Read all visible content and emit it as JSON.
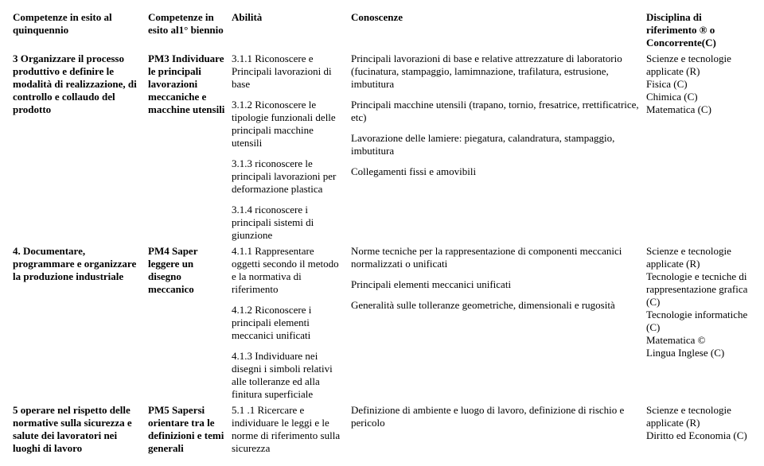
{
  "headers": {
    "h1": "Competenze in esito al quinquennio",
    "h2": "Competenze in esito al1° biennio",
    "h3": "Abilità",
    "h4": "Conoscenze",
    "h5": "Disciplina di riferimento ® o Concorrente(C)"
  },
  "rows": [
    {
      "c1": "3 Organizzare il processo produttivo e definire le modalità di realizzazione, di controllo e collaudo del prodotto",
      "c2_lead": "PM3",
      "c2_rest": " Individuare le principali lavorazioni meccaniche e macchine utensili",
      "abilita": [
        "3.1.1 Riconoscere e Principali lavorazioni di base",
        "3.1.2 Riconoscere le tipologie funzionali delle principali macchine utensili",
        "3.1.3 riconoscere le principali lavorazioni per deformazione plastica",
        "3.1.4 riconoscere i principali sistemi di giunzione"
      ],
      "conoscenze": [
        "Principali lavorazioni di base e relative attrezzature di laboratorio (fucinatura, stampaggio, lamimnazione, trafilatura, estrusione, imbutitura",
        "Principali macchine utensili (trapano, tornio, fresatrice, rrettificatrice, etc)",
        "Lavorazione delle lamiere: piegatura, calandratura, stampaggio, imbutitura",
        "Collegamenti fissi e amovibili"
      ],
      "disc": [
        "Scienze e tecnologie applicate (R)",
        "Fisica (C)",
        "Chimica (C)",
        "Matematica (C)"
      ]
    },
    {
      "c1": "4. Documentare, programmare e organizzare la produzione industriale",
      "c2_lead": "PM4",
      "c2_rest": " Saper leggere un disegno meccanico",
      "abilita": [
        "4.1.1 Rappresentare oggetti secondo il metodo e la normativa di riferimento",
        "4.1.2 Riconoscere i principali elementi meccanici unificati",
        "4.1.3 Individuare nei disegni i simboli relativi alle  tolleranze ed alla finitura superficiale"
      ],
      "conoscenze": [
        "Norme tecniche per la rappresentazione di componenti meccanici normalizzati o unificati",
        "Principali elementi meccanici unificati",
        "Generalità sulle tolleranze geometriche, dimensionali e rugosità"
      ],
      "disc": [
        "Scienze e tecnologie applicate (R)",
        "Tecnologie e tecniche di rappresentazione grafica (C)",
        "Tecnologie informatiche (C)",
        "Matematica ©",
        "Lingua Inglese (C)"
      ]
    },
    {
      "c1": "5 operare nel rispetto delle normative sulla sicurezza e salute dei lavoratori nei luoghi di lavoro",
      "c2_lead": "PM5",
      "c2_rest": " Sapersi orientare tra le definizioni e temi generali",
      "abilita": [
        "5.1 .1 Ricercare e individuare le leggi e le norme di riferimento sulla sicurezza"
      ],
      "conoscenze": [
        "Definizione di ambiente e luogo di lavoro, definizione di rischio e pericolo"
      ],
      "disc": [
        "Scienze e tecnologie applicate (R)",
        "Diritto ed Economia (C)"
      ]
    }
  ]
}
